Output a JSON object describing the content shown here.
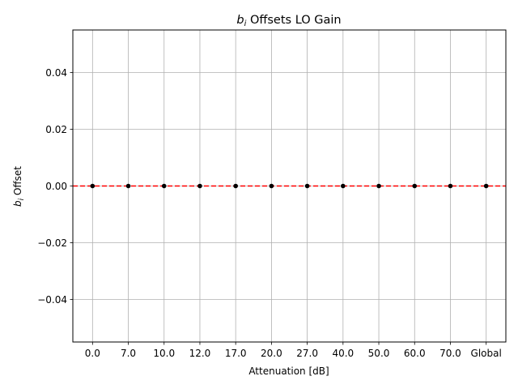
{
  "chart_data": {
    "type": "scatter",
    "title_italic": "b",
    "title_sub": "i",
    "title_rest": " Offsets LO Gain",
    "xlabel": "Attenuation [dB]",
    "ylabel_italic": "b",
    "ylabel_sub": "i",
    "ylabel_rest": " Offset",
    "categories": [
      "0.0",
      "7.0",
      "10.0",
      "12.0",
      "17.0",
      "20.0",
      "27.0",
      "40.0",
      "50.0",
      "60.0",
      "70.0",
      "Global"
    ],
    "values": [
      0,
      0,
      0,
      0,
      0,
      0,
      0,
      0,
      0,
      0,
      0,
      0
    ],
    "ylim": [
      -0.055,
      0.055
    ],
    "yticks": [
      -0.04,
      -0.02,
      0.0,
      0.02,
      0.04
    ],
    "ytick_labels": [
      "−0.04",
      "−0.02",
      "0.00",
      "0.02",
      "0.04"
    ],
    "reference_line": {
      "y": 0,
      "style": "dashed",
      "color": "#ff0000"
    },
    "grid": true,
    "marker_color": "#000000",
    "grid_color": "#b0b0b0"
  }
}
